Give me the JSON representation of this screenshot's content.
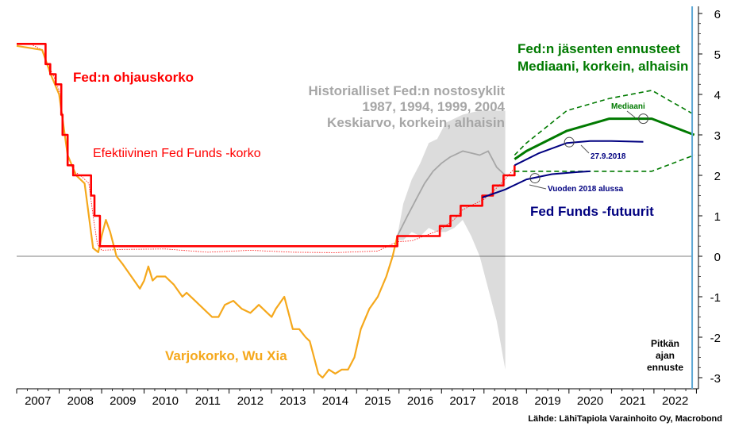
{
  "chart_data": {
    "type": "line",
    "x_range": [
      2007.0,
      2023.0
    ],
    "ylim": [
      -3,
      6
    ],
    "y_ticks": [
      6,
      5,
      4,
      3,
      2,
      1,
      0,
      -1,
      -2,
      -3
    ],
    "y_tick_labels": [
      "6",
      "5",
      "4",
      "3",
      "2",
      "1",
      "0",
      "-1",
      "-2",
      "-3"
    ],
    "x_tick_labels": [
      "2007",
      "2008",
      "2009",
      "2010",
      "2011",
      "2012",
      "2013",
      "2014",
      "2015",
      "2016",
      "2017",
      "2018",
      "2019",
      "2020",
      "2021",
      "2022"
    ],
    "forecast_line_x": 2022.9,
    "colors": {
      "fed_rate": "#ff0000",
      "effective": "#ff0000",
      "shadow": "#f5a81c",
      "hist_band": "#dcdcdc",
      "hist_avg": "#a6a6a6",
      "fomc": "#007a00",
      "futures": "#000080",
      "forecast_line": "#5ea8d6"
    },
    "annotations": {
      "fed_rate": "Fed:n ohjauskorko",
      "effective": "Efektiivinen Fed Funds -korko",
      "shadow": "Varjokorko, Wu Xia",
      "hist_line1": "Historialliset Fed:n nostosyklit",
      "hist_line2": "1987, 1994, 1999, 2004",
      "hist_line3": "Keskiarvo, korkein, alhaisin",
      "fomc_line1": "Fed:n jäsenten ennusteet",
      "fomc_line2": "Mediaani, korkein, alhaisin",
      "mediaani": "Mediaani",
      "futures": "Fed Funds -futuurit",
      "fut_date1": "27.9.2018",
      "fut_date2": "Vuoden 2018 alussa",
      "long_run1": "Pitkän",
      "long_run2": "ajan",
      "long_run3": "ennuste",
      "source": "Lähde: LähiTapiola Varainhoito Oy, Macrobond"
    },
    "series": [
      {
        "name": "Fed:n ohjauskorko",
        "x": [
          2007.0,
          2007.68,
          2007.68,
          2007.79,
          2007.79,
          2007.92,
          2007.92,
          2008.05,
          2008.05,
          2008.08,
          2008.08,
          2008.2,
          2008.2,
          2008.33,
          2008.33,
          2008.75,
          2008.75,
          2008.83,
          2008.83,
          2008.96,
          2008.96,
          2015.96,
          2015.96,
          2016.96,
          2016.96,
          2017.21,
          2017.21,
          2017.45,
          2017.45,
          2017.96,
          2017.96,
          2018.21,
          2018.21,
          2018.46,
          2018.46,
          2018.72,
          2018.72
        ],
        "y": [
          5.25,
          5.25,
          4.75,
          4.75,
          4.5,
          4.5,
          4.25,
          4.25,
          3.5,
          3.5,
          3.0,
          3.0,
          2.25,
          2.25,
          2.0,
          2.0,
          1.5,
          1.5,
          1.0,
          1.0,
          0.25,
          0.25,
          0.5,
          0.5,
          0.75,
          0.75,
          1.0,
          1.0,
          1.25,
          1.25,
          1.5,
          1.5,
          1.75,
          1.75,
          2.0,
          2.0,
          2.25
        ]
      },
      {
        "name": "Efektiivinen Fed Funds -korko",
        "x": [
          2007.0,
          2007.3,
          2007.6,
          2007.7,
          2007.85,
          2008.0,
          2008.1,
          2008.2,
          2008.35,
          2008.5,
          2008.7,
          2008.8,
          2008.9,
          2009.0,
          2009.5,
          2010.5,
          2011.5,
          2012.5,
          2013.5,
          2014.5,
          2015.5,
          2015.96,
          2016.3,
          2016.96,
          2017.3,
          2017.5,
          2018.0,
          2018.3,
          2018.5,
          2018.72
        ],
        "y": [
          5.25,
          5.26,
          5.1,
          4.8,
          4.5,
          4.1,
          3.2,
          2.5,
          2.1,
          2.0,
          1.8,
          1.0,
          0.3,
          0.15,
          0.17,
          0.18,
          0.1,
          0.15,
          0.1,
          0.09,
          0.13,
          0.36,
          0.38,
          0.65,
          0.91,
          1.15,
          1.41,
          1.69,
          1.91,
          2.18
        ]
      },
      {
        "name": "Varjokorko, Wu Xia",
        "x": [
          2007.0,
          2007.6,
          2007.8,
          2008.0,
          2008.2,
          2008.4,
          2008.6,
          2008.8,
          2008.92,
          2009.0,
          2009.1,
          2009.2,
          2009.35,
          2009.5,
          2009.7,
          2009.9,
          2010.0,
          2010.1,
          2010.2,
          2010.3,
          2010.5,
          2010.7,
          2010.9,
          2011.0,
          2011.2,
          2011.4,
          2011.6,
          2011.75,
          2011.9,
          2012.1,
          2012.3,
          2012.5,
          2012.7,
          2012.9,
          2013.0,
          2013.1,
          2013.3,
          2013.5,
          2013.65,
          2013.8,
          2013.9,
          2014.0,
          2014.1,
          2014.2,
          2014.35,
          2014.5,
          2014.65,
          2014.8,
          2014.95,
          2015.1,
          2015.3,
          2015.5,
          2015.7,
          2015.85,
          2015.96
        ],
        "y": [
          5.2,
          5.1,
          4.5,
          4.0,
          2.5,
          2.0,
          1.8,
          0.2,
          0.1,
          0.5,
          0.9,
          0.6,
          0.0,
          -0.2,
          -0.5,
          -0.8,
          -0.6,
          -0.25,
          -0.6,
          -0.5,
          -0.5,
          -0.7,
          -1.0,
          -0.9,
          -1.1,
          -1.3,
          -1.5,
          -1.5,
          -1.2,
          -1.1,
          -1.3,
          -1.4,
          -1.2,
          -1.4,
          -1.5,
          -1.3,
          -1.0,
          -1.8,
          -1.8,
          -2.0,
          -2.1,
          -2.5,
          -2.9,
          -3.0,
          -2.8,
          -2.9,
          -2.8,
          -2.8,
          -2.5,
          -1.8,
          -1.3,
          -1.0,
          -0.5,
          0.0,
          0.5
        ]
      },
      {
        "name": "Historialliset Fed:n nostosyklit",
        "x": [
          2015.96,
          2016.2,
          2016.4,
          2016.6,
          2016.8,
          2017.0,
          2017.2,
          2017.4,
          2017.5,
          2017.7,
          2017.9,
          2018.1,
          2018.3,
          2018.5
        ],
        "y": [
          0.5,
          1.0,
          1.4,
          1.8,
          2.1,
          2.3,
          2.45,
          2.55,
          2.6,
          2.55,
          2.5,
          2.6,
          2.2,
          2.0
        ]
      },
      {
        "name": "Mediaani",
        "x": [
          2018.72,
          2019.0,
          2019.95,
          2020.95,
          2021.95,
          2022.95
        ],
        "y": [
          2.4,
          2.6,
          3.1,
          3.4,
          3.4,
          3.0
        ]
      },
      {
        "name": "FOMC korkein",
        "x": [
          2018.72,
          2019.0,
          2019.95,
          2020.95,
          2021.95,
          2022.95
        ],
        "y": [
          2.5,
          2.8,
          3.6,
          3.9,
          4.1,
          3.5
        ]
      },
      {
        "name": "FOMC alhaisin",
        "x": [
          2018.72,
          2019.0,
          2019.95,
          2020.95,
          2021.95,
          2022.95
        ],
        "y": [
          2.1,
          2.1,
          2.1,
          2.1,
          2.1,
          2.5
        ]
      },
      {
        "name": "27.9.2018",
        "x": [
          2018.72,
          2019.3,
          2019.95,
          2020.5,
          2021.0,
          2021.75
        ],
        "y": [
          2.25,
          2.55,
          2.8,
          2.85,
          2.85,
          2.83
        ]
      },
      {
        "name": "Vuoden 2018 alussa",
        "x": [
          2017.96,
          2018.5,
          2019.0,
          2019.6,
          2020.2,
          2020.5
        ],
        "y": [
          1.45,
          1.65,
          1.9,
          2.03,
          2.08,
          2.1
        ]
      }
    ],
    "historical_band": {
      "x": [
        2015.96,
        2016.1,
        2016.3,
        2016.5,
        2016.7,
        2016.9,
        2017.1,
        2017.3,
        2017.5,
        2017.7,
        2017.9,
        2018.1,
        2018.3,
        2018.5
      ],
      "high": [
        0.5,
        1.3,
        1.9,
        2.3,
        2.8,
        2.9,
        3.3,
        3.4,
        3.5,
        3.55,
        3.6,
        3.6,
        3.6,
        3.6
      ],
      "low": [
        0.4,
        0.4,
        0.6,
        0.5,
        0.7,
        0.6,
        0.6,
        0.7,
        0.9,
        0.5,
        0.0,
        -0.8,
        -1.6,
        -2.8
      ]
    }
  }
}
